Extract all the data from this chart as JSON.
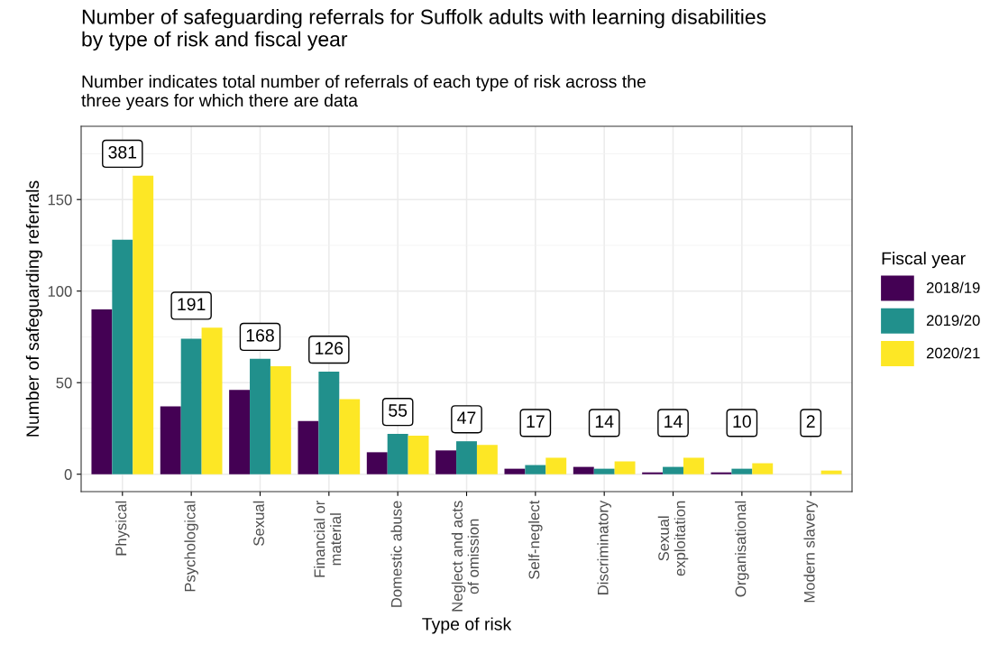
{
  "chart_data": {
    "type": "bar",
    "title": "Number of safeguarding referrals for Suffolk adults with learning disabilities\nby type of risk and fiscal year",
    "subtitle": "Number indicates total number of referrals of each type of risk across the\nthree years for which there are data",
    "xlabel": "Type of risk",
    "ylabel": "Number of safeguarding referrals",
    "legend_title": "Fiscal year",
    "categories": [
      "Physical",
      "Psychological",
      "Sexual",
      "Financial or\nmaterial",
      "Domestic abuse",
      "Neglect and acts\nof omission",
      "Self-neglect",
      "Discriminatory",
      "Sexual\nexploitation",
      "Organisational",
      "Modern slavery"
    ],
    "series": [
      {
        "name": "2018/19",
        "color": "#440154",
        "values": [
          90,
          37,
          46,
          29,
          12,
          13,
          3,
          4,
          1,
          1,
          null
        ]
      },
      {
        "name": "2019/20",
        "color": "#21908c",
        "values": [
          128,
          74,
          63,
          56,
          22,
          18,
          5,
          3,
          4,
          3,
          null
        ]
      },
      {
        "name": "2020/21",
        "color": "#fde725",
        "values": [
          163,
          80,
          59,
          41,
          21,
          16,
          9,
          7,
          9,
          6,
          2
        ]
      }
    ],
    "totals": [
      "381",
      "191",
      "168",
      "126",
      "55",
      "47",
      "17",
      "14",
      "14",
      "10",
      "2"
    ],
    "ylim": [
      -9.5,
      190
    ],
    "yticks": [
      0,
      50,
      100,
      150
    ],
    "grid": true,
    "legend": "right"
  }
}
